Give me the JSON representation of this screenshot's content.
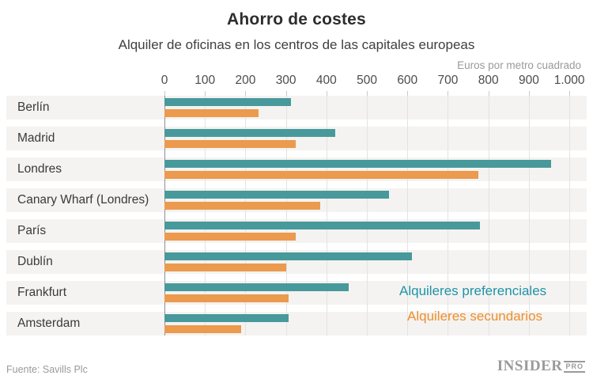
{
  "header": {
    "title": "Ahorro de costes",
    "subtitle": "Alquiler de oficinas en los centros de las capitales europeas"
  },
  "axis": {
    "unit_label": "Euros por metro cuadrado",
    "ticks": [
      "0",
      "100",
      "200",
      "300",
      "400",
      "500",
      "600",
      "700",
      "800",
      "900",
      "1.000"
    ]
  },
  "chart_data": {
    "type": "bar",
    "orientation": "horizontal",
    "title": "Ahorro de costes",
    "subtitle": "Alquiler de oficinas en los centros de las capitales europeas",
    "xlabel": "Euros por metro cuadrado",
    "xlim": [
      0,
      1000
    ],
    "grid": true,
    "legend_position": "inside-bottom-right",
    "categories": [
      "Berlín",
      "Madrid",
      "Londres",
      "Canary Wharf (Londres)",
      "París",
      "Dublín",
      "Frankfurt",
      "Amsterdam"
    ],
    "series": [
      {
        "name": "Alquileres preferenciales",
        "color": "#48999b",
        "values": [
          313,
          421,
          955,
          555,
          780,
          612,
          455,
          306
        ]
      },
      {
        "name": "Alquileres secundarios",
        "color": "#eb9a4e",
        "values": [
          233,
          325,
          775,
          385,
          325,
          300,
          306,
          190
        ]
      }
    ]
  },
  "legend": {
    "preferential": "Alquileres preferenciales",
    "secondary": "Alquileres secundarios"
  },
  "footer": {
    "source": "Fuente: Savills Plc",
    "logo_main": "INSIDER",
    "logo_badge": "PRO"
  },
  "colors": {
    "preferential_bar": "#48999b",
    "secondary_bar": "#eb9a4e",
    "band_background": "#f4f3f1",
    "gridline": "#e3e3e1",
    "zero_line": "#8f8f8f",
    "legend_preferential_text": "#1f93a8",
    "legend_secondary_text": "#ef8e2c",
    "muted_text": "#9a9a9a"
  }
}
